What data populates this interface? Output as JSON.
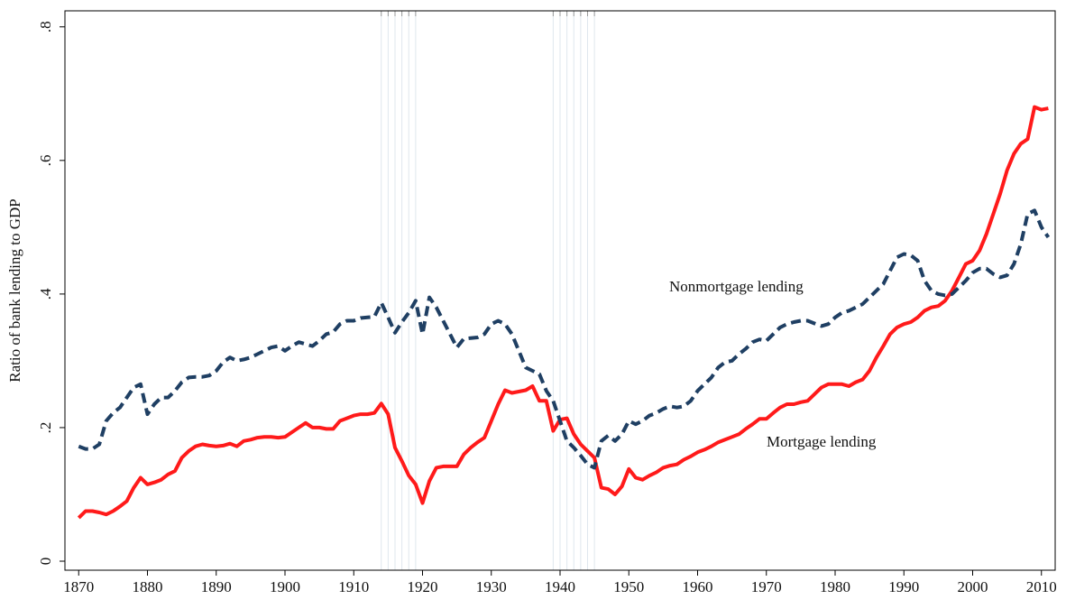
{
  "chart_data": {
    "type": "line",
    "y_label": "Ratio of bank lending to GDP",
    "x": [
      1870,
      1871,
      1872,
      1873,
      1874,
      1875,
      1876,
      1877,
      1878,
      1879,
      1880,
      1881,
      1882,
      1883,
      1884,
      1885,
      1886,
      1887,
      1888,
      1889,
      1890,
      1891,
      1892,
      1893,
      1894,
      1895,
      1896,
      1897,
      1898,
      1899,
      1900,
      1901,
      1902,
      1903,
      1904,
      1905,
      1906,
      1907,
      1908,
      1909,
      1910,
      1911,
      1912,
      1913,
      1914,
      1915,
      1916,
      1917,
      1918,
      1919,
      1920,
      1921,
      1922,
      1923,
      1924,
      1925,
      1926,
      1927,
      1928,
      1929,
      1930,
      1931,
      1932,
      1933,
      1934,
      1935,
      1936,
      1937,
      1938,
      1939,
      1940,
      1941,
      1942,
      1943,
      1944,
      1945,
      1946,
      1947,
      1948,
      1949,
      1950,
      1951,
      1952,
      1953,
      1954,
      1955,
      1956,
      1957,
      1958,
      1959,
      1960,
      1961,
      1962,
      1963,
      1964,
      1965,
      1966,
      1967,
      1968,
      1969,
      1970,
      1971,
      1972,
      1973,
      1974,
      1975,
      1976,
      1977,
      1978,
      1979,
      1980,
      1981,
      1982,
      1983,
      1984,
      1985,
      1986,
      1987,
      1988,
      1989,
      1990,
      1991,
      1992,
      1993,
      1994,
      1995,
      1996,
      1997,
      1998,
      1999,
      2000,
      2001,
      2002,
      2003,
      2004,
      2005,
      2006,
      2007,
      2008,
      2009,
      2010,
      2011
    ],
    "series": [
      {
        "name": "Mortgage lending",
        "color": "#ff1a1a",
        "dashed": false,
        "values": [
          0.065,
          0.075,
          0.075,
          0.073,
          0.07,
          0.075,
          0.082,
          0.09,
          0.11,
          0.125,
          0.115,
          0.118,
          0.122,
          0.13,
          0.135,
          0.155,
          0.165,
          0.172,
          0.175,
          0.173,
          0.172,
          0.173,
          0.176,
          0.172,
          0.18,
          0.182,
          0.185,
          0.186,
          0.186,
          0.185,
          0.186,
          0.193,
          0.2,
          0.207,
          0.2,
          0.2,
          0.198,
          0.198,
          0.21,
          0.214,
          0.218,
          0.22,
          0.22,
          0.222,
          0.236,
          0.22,
          0.17,
          0.15,
          0.128,
          0.115,
          0.087,
          0.12,
          0.14,
          0.142,
          0.142,
          0.142,
          0.16,
          0.17,
          0.178,
          0.185,
          0.21,
          0.235,
          0.256,
          0.252,
          0.254,
          0.256,
          0.262,
          0.24,
          0.24,
          0.195,
          0.212,
          0.214,
          0.19,
          0.175,
          0.165,
          0.155,
          0.11,
          0.108,
          0.1,
          0.112,
          0.138,
          0.125,
          0.122,
          0.128,
          0.133,
          0.14,
          0.143,
          0.145,
          0.152,
          0.157,
          0.163,
          0.167,
          0.172,
          0.178,
          0.182,
          0.186,
          0.19,
          0.198,
          0.205,
          0.213,
          0.213,
          0.222,
          0.23,
          0.235,
          0.235,
          0.238,
          0.24,
          0.25,
          0.26,
          0.265,
          0.265,
          0.265,
          0.262,
          0.268,
          0.272,
          0.285,
          0.305,
          0.322,
          0.34,
          0.35,
          0.355,
          0.358,
          0.365,
          0.375,
          0.38,
          0.382,
          0.39,
          0.405,
          0.425,
          0.445,
          0.45,
          0.465,
          0.49,
          0.52,
          0.55,
          0.585,
          0.61,
          0.625,
          0.632,
          0.68,
          0.676,
          0.678
        ]
      },
      {
        "name": "Nonmortgage lending",
        "color": "#1f3f63",
        "dashed": true,
        "values": [
          0.172,
          0.168,
          0.168,
          0.175,
          0.21,
          0.222,
          0.23,
          0.245,
          0.26,
          0.265,
          0.22,
          0.235,
          0.245,
          0.245,
          0.255,
          0.268,
          0.275,
          0.276,
          0.276,
          0.278,
          0.285,
          0.298,
          0.305,
          0.3,
          0.302,
          0.305,
          0.31,
          0.315,
          0.32,
          0.322,
          0.315,
          0.322,
          0.328,
          0.325,
          0.322,
          0.33,
          0.34,
          0.343,
          0.355,
          0.36,
          0.36,
          0.364,
          0.365,
          0.366,
          0.387,
          0.365,
          0.342,
          0.358,
          0.372,
          0.39,
          0.34,
          0.395,
          0.38,
          0.36,
          0.34,
          0.32,
          0.333,
          0.334,
          0.335,
          0.34,
          0.355,
          0.36,
          0.355,
          0.34,
          0.315,
          0.29,
          0.285,
          0.28,
          0.255,
          0.24,
          0.21,
          0.18,
          0.17,
          0.158,
          0.145,
          0.14,
          0.18,
          0.188,
          0.18,
          0.19,
          0.21,
          0.205,
          0.21,
          0.218,
          0.222,
          0.228,
          0.232,
          0.23,
          0.232,
          0.24,
          0.255,
          0.265,
          0.275,
          0.29,
          0.298,
          0.3,
          0.31,
          0.318,
          0.328,
          0.332,
          0.33,
          0.34,
          0.35,
          0.355,
          0.358,
          0.36,
          0.36,
          0.356,
          0.352,
          0.355,
          0.365,
          0.372,
          0.375,
          0.38,
          0.385,
          0.395,
          0.405,
          0.415,
          0.435,
          0.455,
          0.46,
          0.458,
          0.45,
          0.42,
          0.405,
          0.4,
          0.398,
          0.4,
          0.41,
          0.42,
          0.432,
          0.438,
          0.438,
          0.43,
          0.425,
          0.428,
          0.445,
          0.475,
          0.52,
          0.525,
          0.5,
          0.485
        ]
      }
    ],
    "vertical_lines": [
      1914,
      1915,
      1916,
      1917,
      1918,
      1919,
      1939,
      1940,
      1941,
      1942,
      1943,
      1944,
      1945
    ],
    "xlim": [
      1868,
      2012
    ],
    "xticks": [
      1870,
      1880,
      1890,
      1900,
      1910,
      1920,
      1930,
      1940,
      1950,
      1960,
      1970,
      1980,
      1990,
      2000,
      2010
    ],
    "ylim": [
      -0.0135,
      0.824
    ],
    "yticks": [
      0,
      {
        "value": 0.2,
        "label": ".2"
      },
      {
        "value": 0.4,
        "label": ".4"
      },
      {
        "value": 0.6,
        "label": ".6"
      },
      {
        "value": 0.8,
        "label": ".8"
      }
    ],
    "grid": false
  }
}
